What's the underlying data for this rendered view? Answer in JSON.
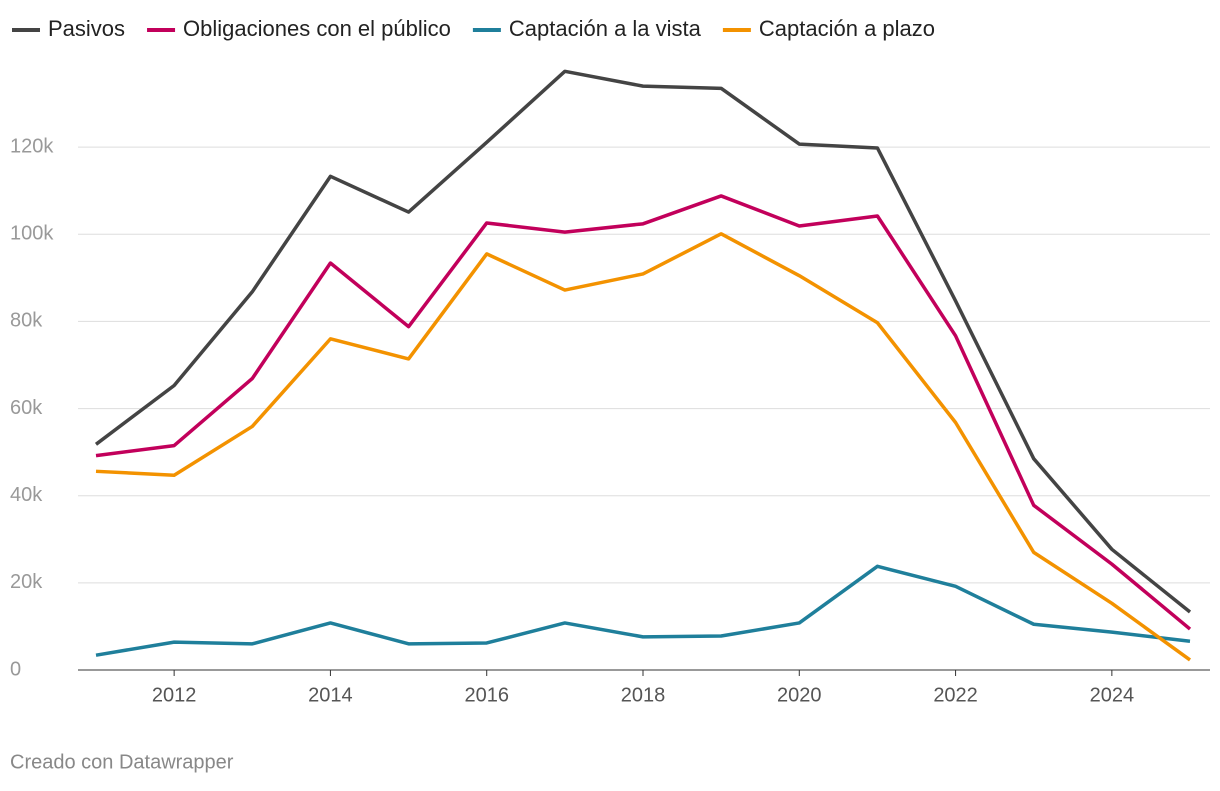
{
  "chart_data": {
    "type": "line",
    "x": [
      2011,
      2012,
      2013,
      2014,
      2015,
      2016,
      2017,
      2018,
      2019,
      2020,
      2021,
      2022,
      2023,
      2024,
      2025
    ],
    "series": [
      {
        "name": "Pasivos",
        "color": "#444444",
        "values": [
          51800,
          65300,
          86800,
          113300,
          105100,
          121100,
          137400,
          134000,
          133500,
          120700,
          119800,
          84700,
          48500,
          27700,
          13300
        ]
      },
      {
        "name": "Obligaciones con el público",
        "color": "#c2005b",
        "values": [
          49200,
          51500,
          66900,
          93400,
          78800,
          102600,
          100500,
          102400,
          108800,
          101900,
          104200,
          76700,
          37800,
          24300,
          9400
        ]
      },
      {
        "name": "Captación a la vista",
        "color": "#1f7f9b",
        "values": [
          3400,
          6400,
          6000,
          10800,
          6000,
          6200,
          10800,
          7600,
          7800,
          10800,
          23800,
          19200,
          10500,
          8700,
          6600
        ]
      },
      {
        "name": "Captación a plazo",
        "color": "#f39200",
        "values": [
          45600,
          44700,
          55900,
          76000,
          71400,
          95500,
          87200,
          90900,
          100100,
          90500,
          79700,
          56800,
          27000,
          15300,
          2300
        ]
      }
    ],
    "xlim": [
      2011,
      2025
    ],
    "xticks": [
      2012,
      2014,
      2016,
      2018,
      2020,
      2022,
      2024
    ],
    "ylim": [
      0,
      140000
    ],
    "yticks": [
      0,
      {
        "value": 20000,
        "label": "20k"
      },
      {
        "value": 40000,
        "label": "40k"
      },
      {
        "value": 60000,
        "label": "60k"
      },
      {
        "value": 80000,
        "label": "80k"
      },
      {
        "value": 100000,
        "label": "100k"
      },
      {
        "value": 120000,
        "label": "120k"
      }
    ],
    "grid": true,
    "footer": "Creado con Datawrapper"
  }
}
